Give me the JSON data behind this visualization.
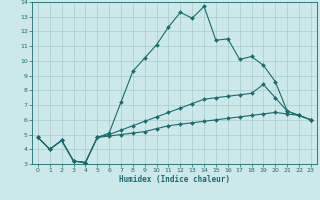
{
  "xlabel": "Humidex (Indice chaleur)",
  "bg_color": "#cce8e8",
  "grid_color": "#aacccc",
  "line_color": "#1a6b6b",
  "xlim": [
    -0.5,
    23.5
  ],
  "ylim": [
    3,
    14
  ],
  "xticks": [
    0,
    1,
    2,
    3,
    4,
    5,
    6,
    7,
    8,
    9,
    10,
    11,
    12,
    13,
    14,
    15,
    16,
    17,
    18,
    19,
    20,
    21,
    22,
    23
  ],
  "yticks": [
    3,
    4,
    5,
    6,
    7,
    8,
    9,
    10,
    11,
    12,
    13,
    14
  ],
  "series": [
    {
      "x": [
        0,
        1,
        2,
        3,
        4,
        5,
        6,
        7,
        8,
        9,
        10,
        11,
        12,
        13,
        14,
        15,
        16,
        17,
        18,
        19,
        20,
        21,
        22,
        23
      ],
      "y": [
        4.8,
        4.0,
        4.6,
        3.2,
        3.1,
        4.8,
        5.1,
        7.2,
        9.3,
        10.2,
        11.1,
        12.3,
        13.3,
        12.9,
        13.7,
        11.4,
        11.5,
        10.1,
        10.3,
        9.7,
        8.6,
        6.6,
        6.3,
        6.0
      ]
    },
    {
      "x": [
        0,
        1,
        2,
        3,
        4,
        5,
        6,
        7,
        8,
        9,
        10,
        11,
        12,
        13,
        14,
        15,
        16,
        17,
        18,
        19,
        20,
        21,
        22,
        23
      ],
      "y": [
        4.8,
        4.0,
        4.6,
        3.2,
        3.1,
        4.8,
        5.0,
        5.3,
        5.6,
        5.9,
        6.2,
        6.5,
        6.8,
        7.1,
        7.4,
        7.5,
        7.6,
        7.7,
        7.8,
        8.4,
        7.5,
        6.6,
        6.3,
        6.0
      ]
    },
    {
      "x": [
        0,
        1,
        2,
        3,
        4,
        5,
        6,
        7,
        8,
        9,
        10,
        11,
        12,
        13,
        14,
        15,
        16,
        17,
        18,
        19,
        20,
        21,
        22,
        23
      ],
      "y": [
        4.8,
        4.0,
        4.6,
        3.2,
        3.1,
        4.8,
        4.9,
        5.0,
        5.1,
        5.2,
        5.4,
        5.6,
        5.7,
        5.8,
        5.9,
        6.0,
        6.1,
        6.2,
        6.3,
        6.4,
        6.5,
        6.4,
        6.3,
        6.0
      ]
    }
  ]
}
